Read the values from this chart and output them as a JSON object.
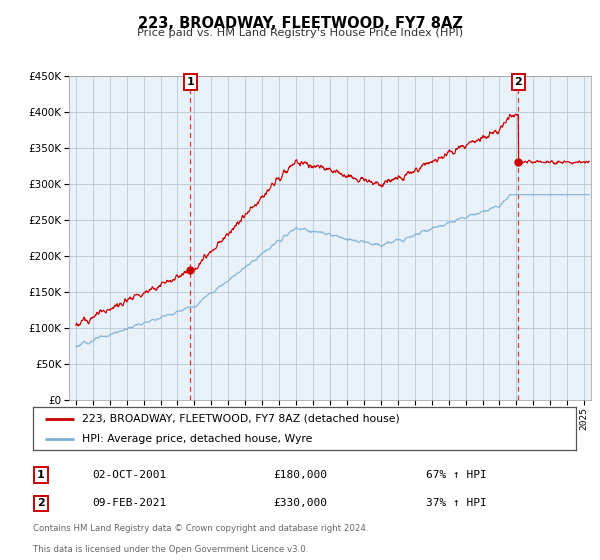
{
  "title": "223, BROADWAY, FLEETWOOD, FY7 8AZ",
  "subtitle": "Price paid vs. HM Land Registry's House Price Index (HPI)",
  "legend_line1": "223, BROADWAY, FLEETWOOD, FY7 8AZ (detached house)",
  "legend_line2": "HPI: Average price, detached house, Wyre",
  "sale1_date": "02-OCT-2001",
  "sale1_price": "£180,000",
  "sale1_hpi": "67% ↑ HPI",
  "sale1_year": 2001.75,
  "sale1_value": 180000,
  "sale2_date": "09-FEB-2021",
  "sale2_price": "£330,000",
  "sale2_hpi": "37% ↑ HPI",
  "sale2_year": 2021.12,
  "sale2_value": 330000,
  "hpi_color": "#7bafd4",
  "price_color": "#cc0000",
  "plot_bg": "#e8f0f8",
  "grid_color": "#b8c8d8",
  "bg_color": "#ffffff",
  "footnote_line1": "Contains HM Land Registry data © Crown copyright and database right 2024.",
  "footnote_line2": "This data is licensed under the Open Government Licence v3.0.",
  "ylim_max": 450000,
  "yticks": [
    0,
    50000,
    100000,
    150000,
    200000,
    250000,
    300000,
    350000,
    400000,
    450000
  ],
  "xmin": 1994.6,
  "xmax": 2025.4
}
